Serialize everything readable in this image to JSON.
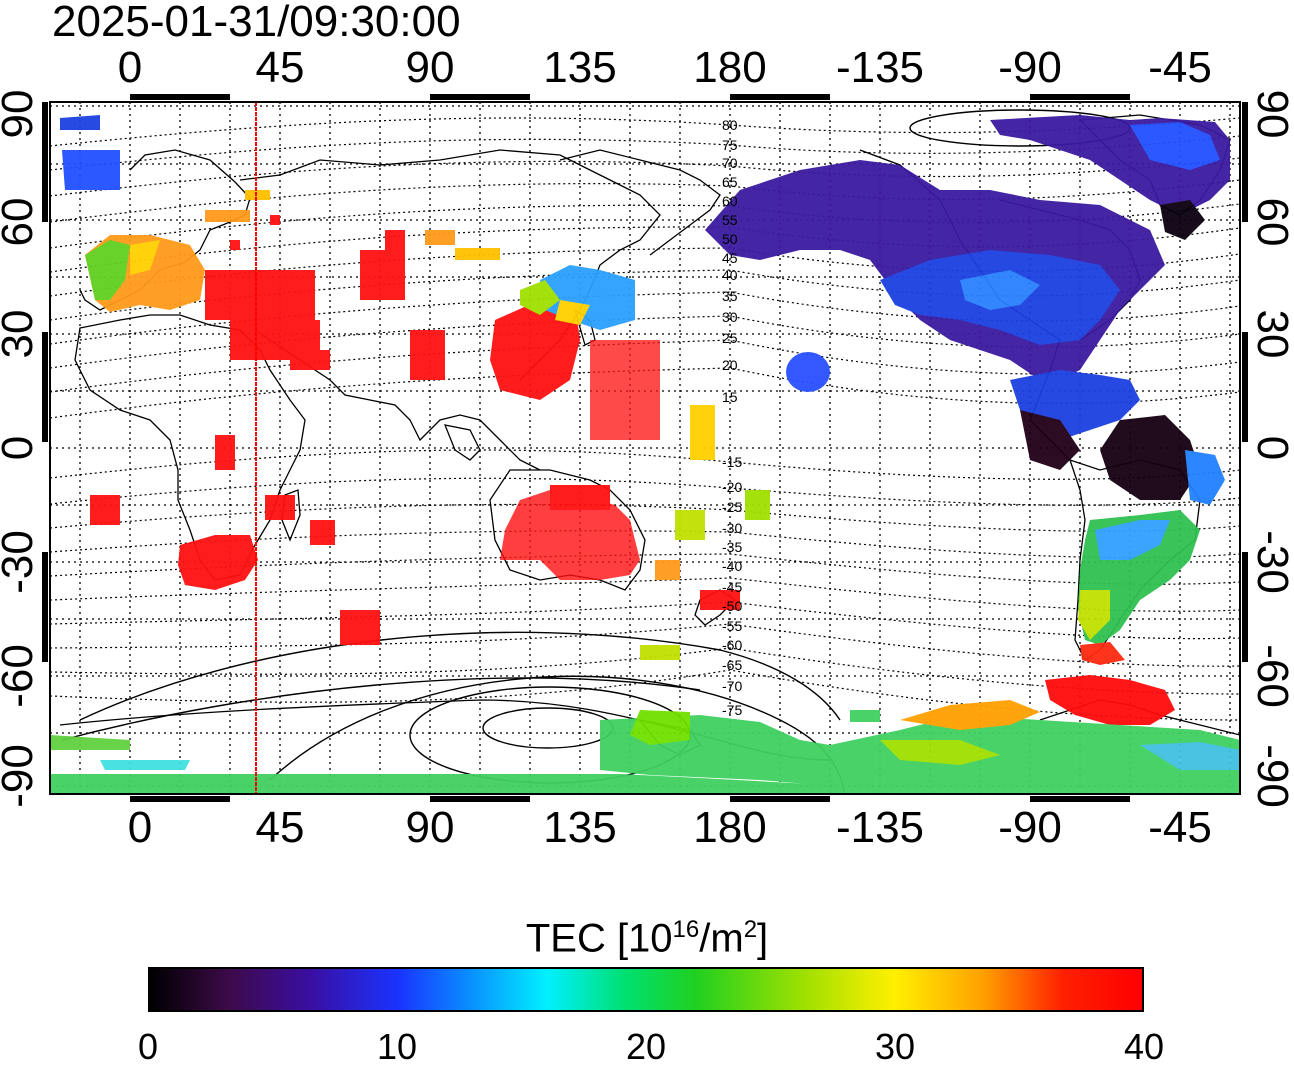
{
  "timestamp": "2025-01-31/09:30:00",
  "top_longitude_ticks": [
    "0",
    "45",
    "90",
    "135",
    "180",
    "-135",
    "-90",
    "-45"
  ],
  "bottom_longitude_ticks": [
    "0",
    "45",
    "90",
    "135",
    "180",
    "-135",
    "-90",
    "-45"
  ],
  "left_latitude_ticks": [
    "90",
    "60",
    "30",
    "0",
    "-30",
    "-60",
    "-90"
  ],
  "right_latitude_ticks": [
    "90",
    "60",
    "30",
    "0",
    "-30",
    "-60",
    "-90"
  ],
  "contour_labels": [
    "80",
    "75",
    "70",
    "65",
    "60",
    "55",
    "50",
    "45",
    "40",
    "35",
    "30",
    "25",
    "20",
    "15",
    "-15",
    "-20",
    "-25",
    "-30",
    "-35",
    "-40",
    "-45",
    "-50",
    "-55",
    "-60",
    "-65",
    "-70",
    "-75"
  ],
  "colorbar": {
    "title_prefix": "TEC  [10",
    "title_exp": "16",
    "title_mid": "/m",
    "title_exp2": "2",
    "title_suffix": "]",
    "ticks": [
      "0",
      "10",
      "20",
      "30",
      "40"
    ],
    "min": 0,
    "max": 40
  },
  "map": {
    "projection": "equirectangular",
    "lon_range": [
      -20,
      340
    ],
    "lat_range": [
      -90,
      90
    ],
    "red_meridian_lon": 38,
    "grid": "dotted, 15 degree"
  },
  "colors": {
    "low": "#000000",
    "purple": "#3a0ea0",
    "blue": "#1a33ff",
    "cyan": "#00f0ff",
    "green": "#20d020",
    "yellow": "#fff000",
    "orange": "#ffa000",
    "red": "#ff0000"
  }
}
